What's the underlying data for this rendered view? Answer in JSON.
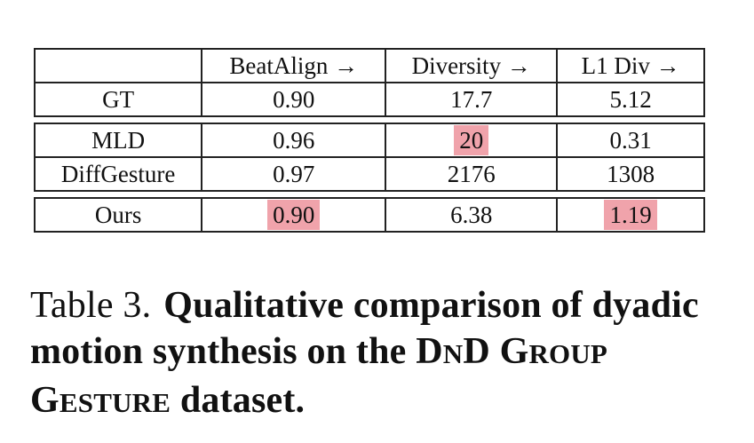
{
  "table": {
    "headers": [
      "",
      "BeatAlign →",
      "Diversity →",
      "L1 Div →"
    ],
    "groups": [
      [
        {
          "method": "GT",
          "beatalign": "0.90",
          "diversity": "17.7",
          "l1div": "5.12"
        }
      ],
      [
        {
          "method": "MLD",
          "beatalign": "0.96",
          "diversity": "20",
          "l1div": "0.31"
        },
        {
          "method": "DiffGesture",
          "beatalign": "0.97",
          "diversity": "2176",
          "l1div": "1308"
        }
      ],
      [
        {
          "method": "Ours",
          "beatalign": "0.90",
          "diversity": "6.38",
          "l1div": "1.19"
        }
      ]
    ],
    "highlight_color": "#f0a3ab"
  },
  "caption": {
    "label": "Table 3.",
    "text_part1": "Qualitative comparison of dyadic motion synthesis on the D",
    "text_part1_sc": "N",
    "text_part2": "D ",
    "text_part3_G": "G",
    "text_part3_roup": "ROUP",
    "text_part4_G": " G",
    "text_part4_esture": "ESTURE",
    "text_part5": " dataset."
  }
}
